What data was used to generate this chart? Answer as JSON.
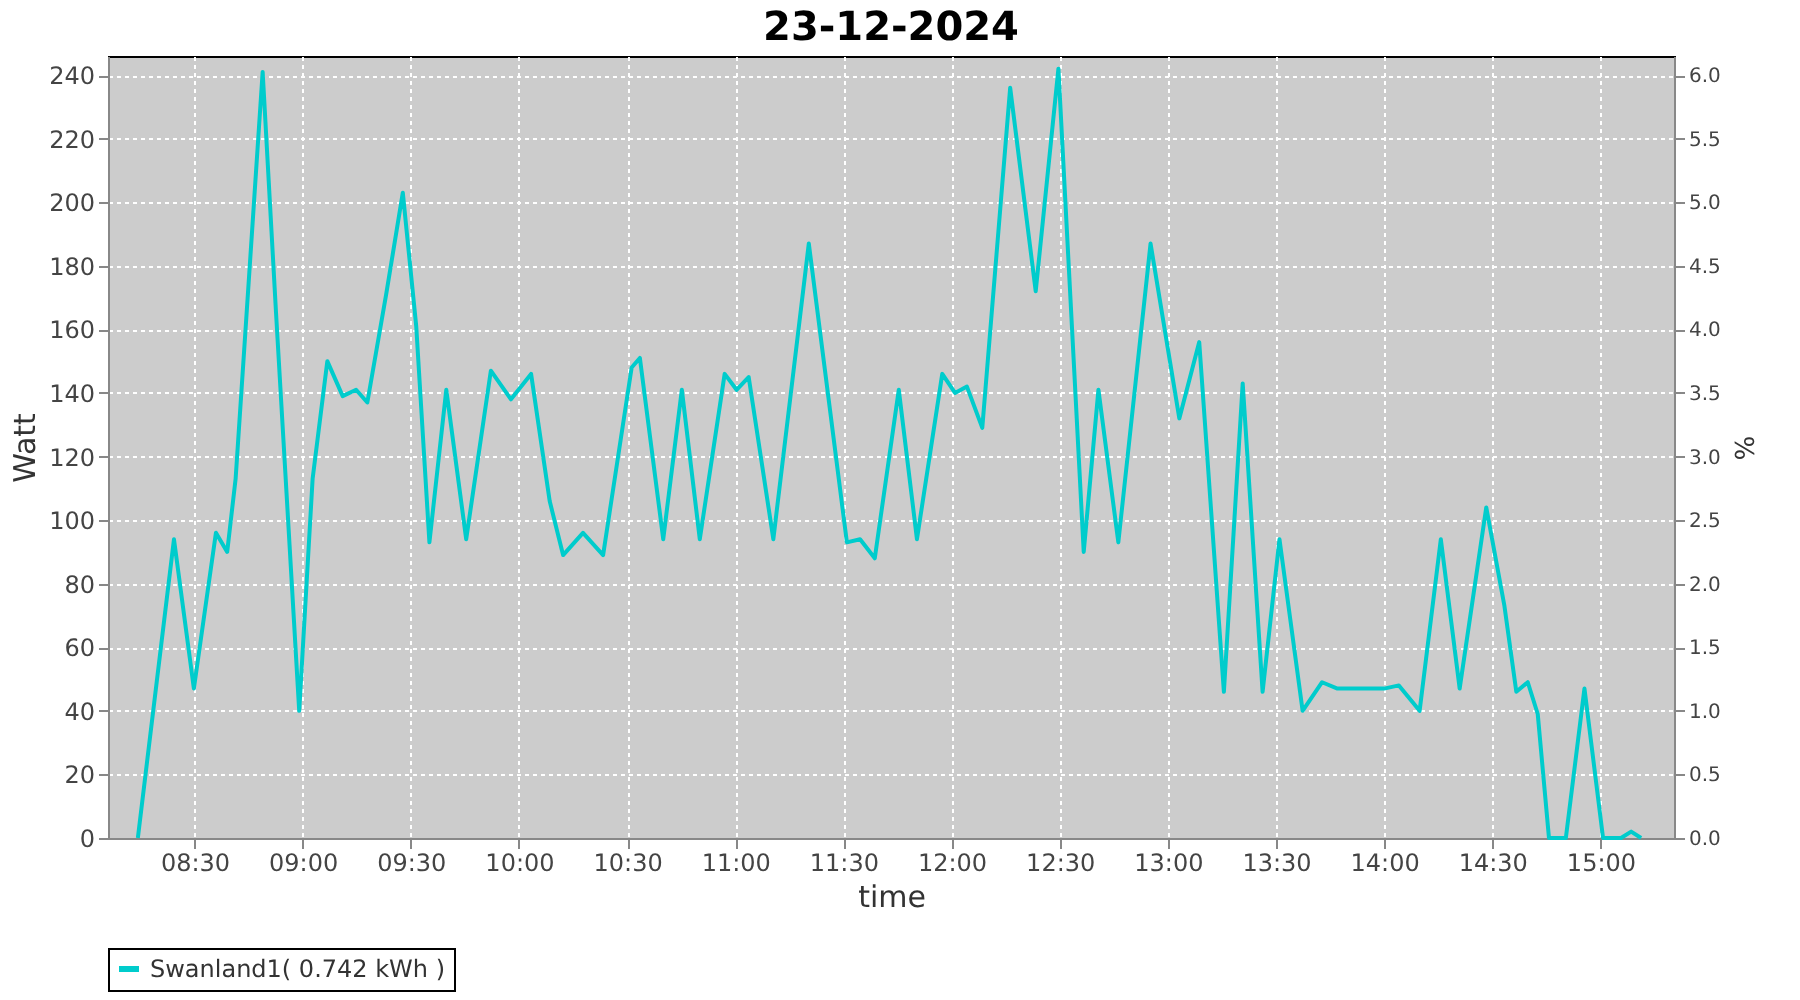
{
  "chart_data": {
    "type": "line",
    "title": "23-12-2024",
    "xlabel": "time",
    "ylabel": "Watt",
    "y2label": "%",
    "xlim": [
      8.1,
      15.34
    ],
    "xticks": [
      {
        "value": 8.5,
        "label": "08:30"
      },
      {
        "value": 9,
        "label": "09:00"
      },
      {
        "value": 9.5,
        "label": "09:30"
      },
      {
        "value": 10,
        "label": "10:00"
      },
      {
        "value": 10.5,
        "label": "10:30"
      },
      {
        "value": 11,
        "label": "11:00"
      },
      {
        "value": 11.5,
        "label": "11:30"
      },
      {
        "value": 12,
        "label": "12:00"
      },
      {
        "value": 12.5,
        "label": "12:30"
      },
      {
        "value": 13,
        "label": "13:00"
      },
      {
        "value": 13.5,
        "label": "13:30"
      },
      {
        "value": 14,
        "label": "14:00"
      },
      {
        "value": 14.5,
        "label": "14:30"
      },
      {
        "value": 15,
        "label": "15:00"
      }
    ],
    "ylim": [
      0,
      246
    ],
    "yticks": [
      0,
      20,
      40,
      60,
      80,
      100,
      120,
      140,
      160,
      180,
      200,
      220,
      240
    ],
    "y2lim": [
      0,
      6.15
    ],
    "y2ticks": [
      {
        "value": 0,
        "label": "0.0"
      },
      0.5,
      {
        "value": 1,
        "label": "1.0"
      },
      1.5,
      {
        "value": 2,
        "label": "2.0"
      },
      2.5,
      {
        "value": 3,
        "label": "3.0"
      },
      3.5,
      {
        "value": 4,
        "label": "4.0"
      },
      4.5,
      {
        "value": 5,
        "label": "5.0"
      },
      5.5,
      {
        "value": 6,
        "label": "6.0"
      }
    ],
    "grid": true,
    "legend": "bottom",
    "line_style": "solid",
    "marker": "none",
    "series": [
      {
        "name": "Swanland1( 0.742 kWh )",
        "color": "#00cccc",
        "x": [
          8.238,
          8.405,
          8.497,
          8.599,
          8.651,
          8.69,
          8.815,
          8.877,
          8.984,
          9.046,
          9.114,
          9.185,
          9.247,
          9.299,
          9.386,
          9.463,
          9.525,
          9.586,
          9.664,
          9.756,
          9.87,
          9.963,
          10.056,
          10.142,
          10.204,
          10.296,
          10.389,
          10.521,
          10.559,
          10.667,
          10.753,
          10.836,
          10.951,
          11.006,
          11.062,
          11.176,
          11.34,
          11.516,
          11.577,
          11.645,
          11.756,
          11.84,
          11.957,
          12.016,
          12.071,
          12.142,
          12.271,
          12.389,
          12.494,
          12.611,
          12.679,
          12.771,
          12.92,
          13.053,
          13.145,
          13.259,
          13.346,
          13.438,
          13.516,
          13.623,
          13.713,
          13.784,
          13.907,
          14.0,
          14.068,
          14.164,
          14.262,
          14.349,
          14.472,
          14.556,
          14.611,
          14.664,
          14.71,
          14.762,
          14.84,
          14.926,
          15.012,
          15.095,
          15.142,
          15.188
        ],
        "values": [
          0,
          94,
          47,
          96,
          90,
          113,
          241,
          165,
          40,
          113,
          150,
          139,
          141,
          137,
          171,
          203,
          161,
          93,
          141,
          94,
          147,
          138,
          146,
          106,
          89,
          96,
          89,
          148,
          151,
          94,
          141,
          94,
          146,
          141,
          145,
          94,
          187,
          93,
          94,
          88,
          141,
          94,
          146,
          140,
          142,
          129,
          236,
          172,
          242,
          90,
          141,
          93,
          187,
          132,
          156,
          46,
          143,
          46,
          94,
          40,
          49,
          47,
          47,
          47,
          48,
          40,
          94,
          47,
          104,
          73,
          46,
          49,
          39,
          0,
          0,
          47,
          0,
          0,
          2,
          0
        ]
      }
    ]
  }
}
